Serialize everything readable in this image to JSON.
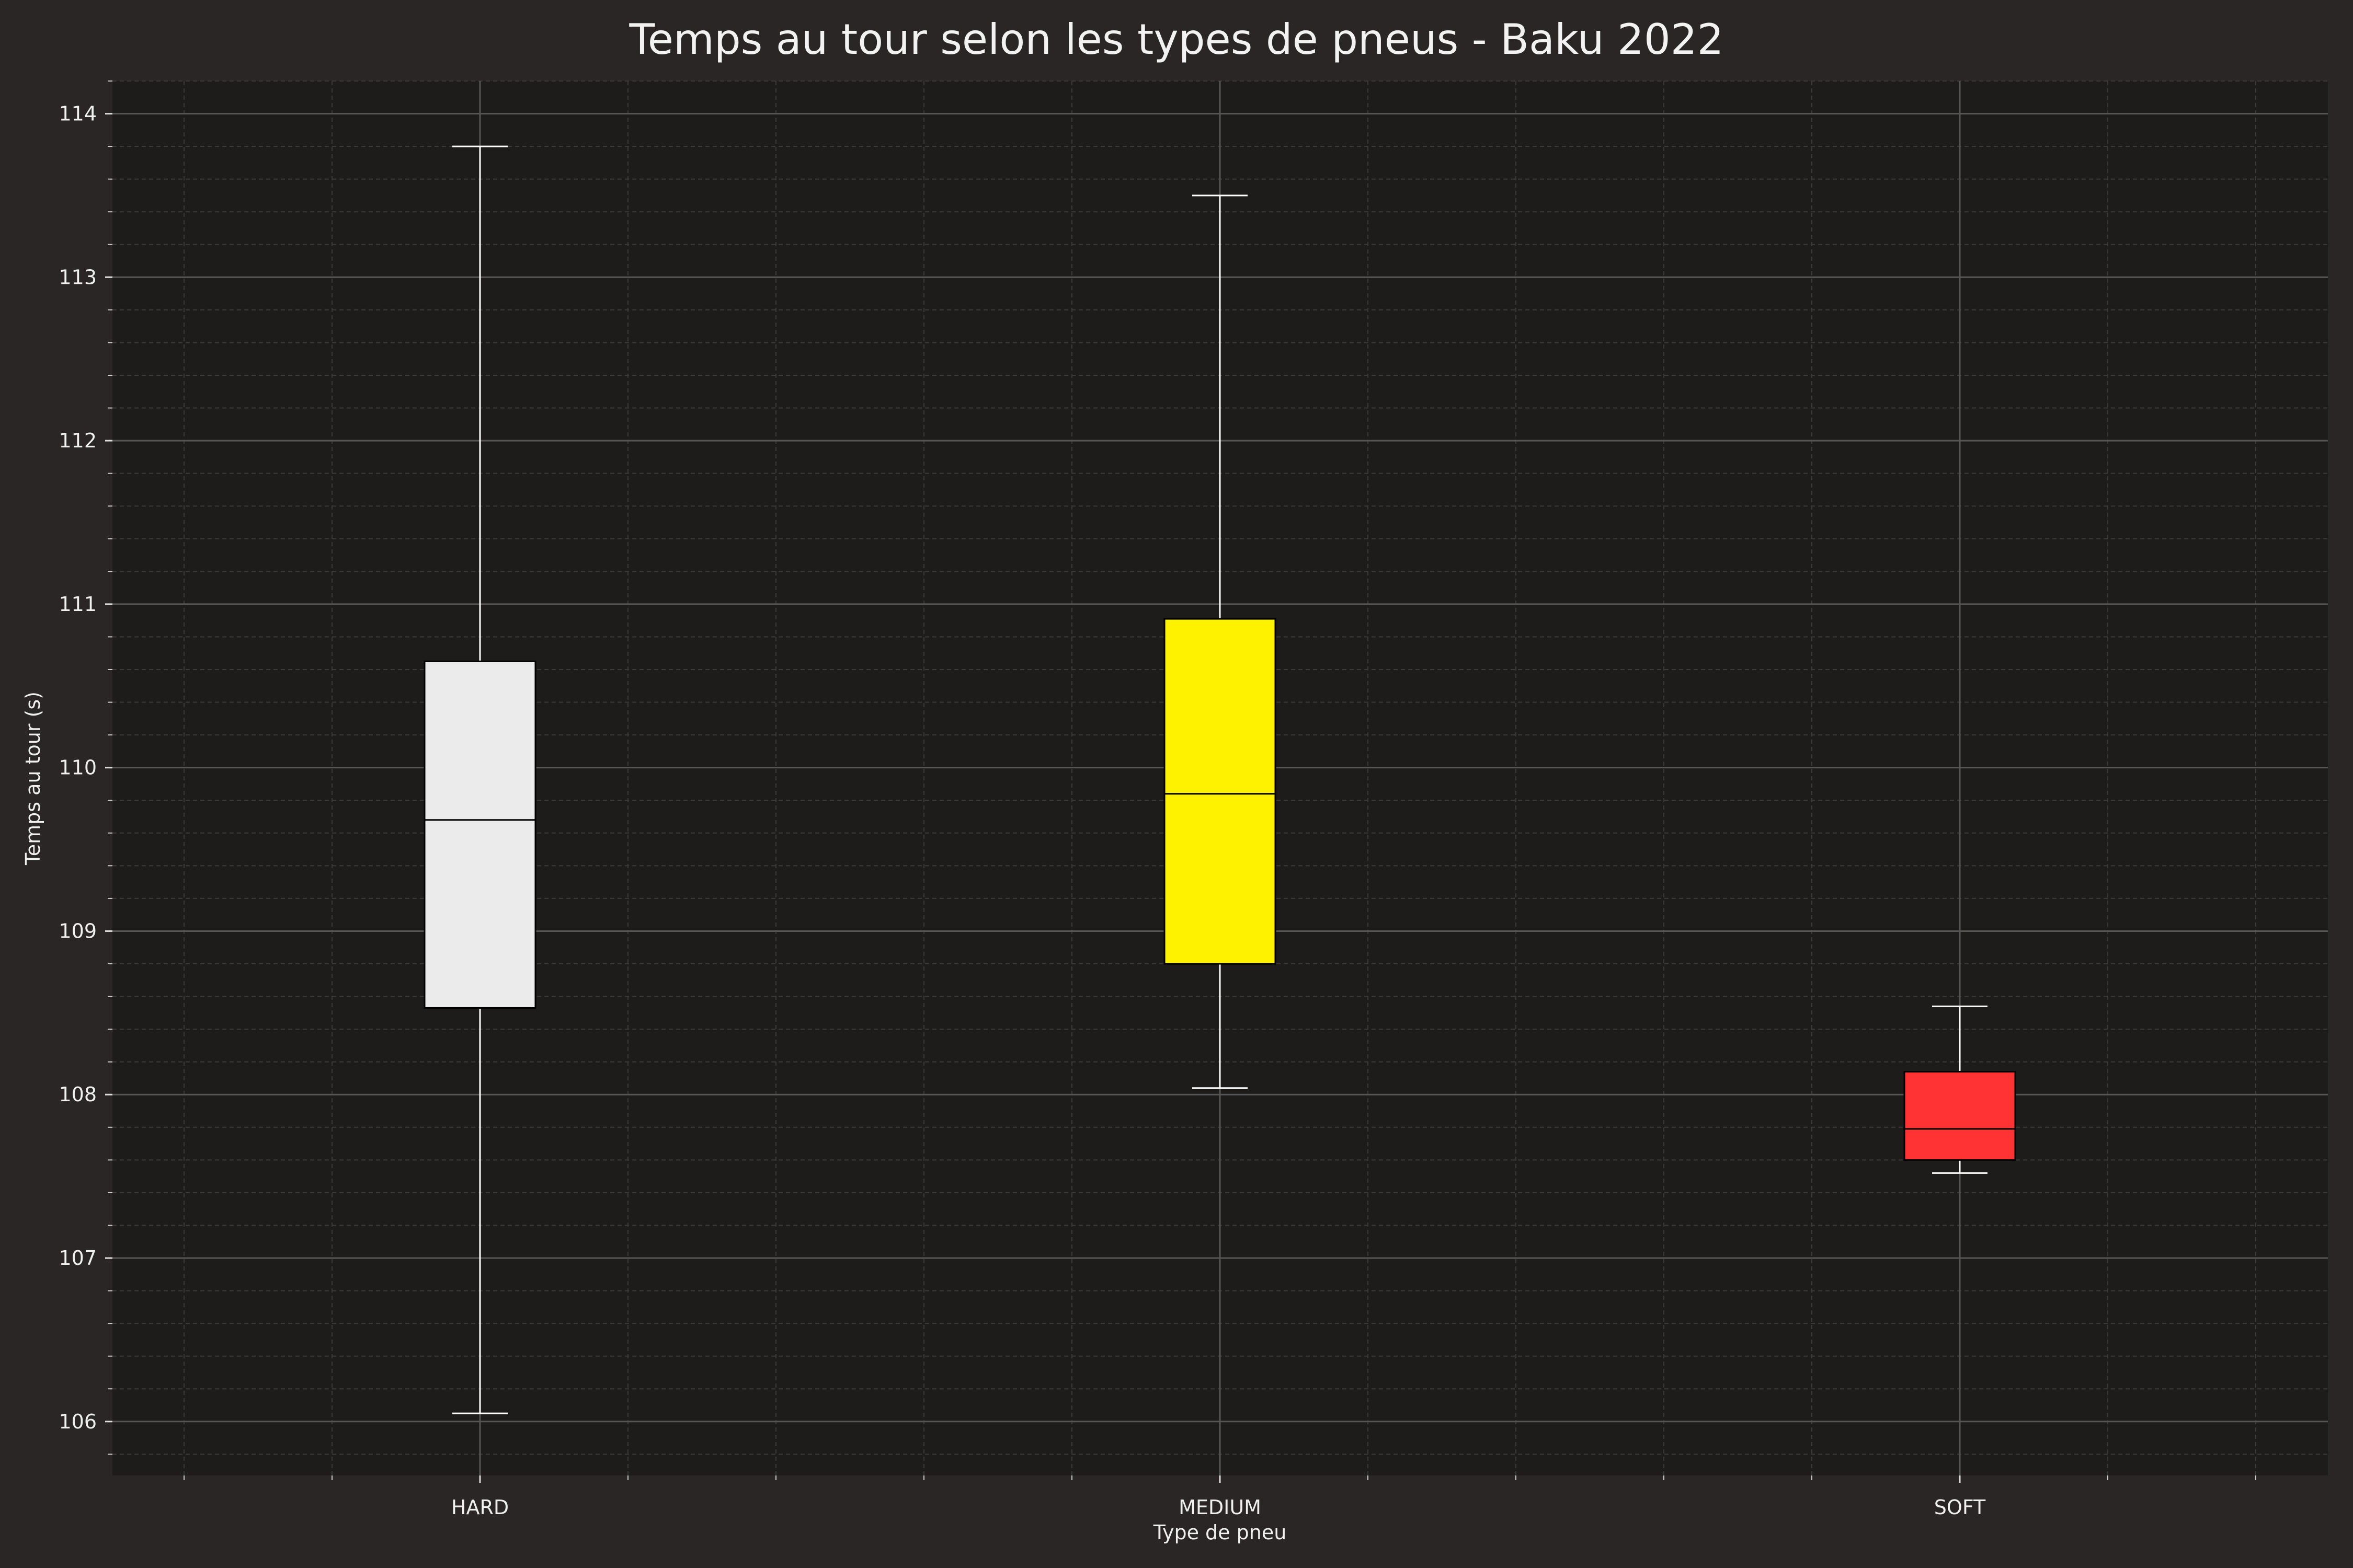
{
  "chart_data": {
    "type": "box",
    "title": "Temps au tour selon les types de pneus - Baku 2022",
    "xlabel": "Type de pneu",
    "ylabel": "Temps au tour (s)",
    "ylim": [
      105.67,
      114.2
    ],
    "y_ticks": [
      106,
      107,
      108,
      109,
      110,
      111,
      112,
      113,
      114
    ],
    "grid": true,
    "categories": [
      "HARD",
      "MEDIUM",
      "SOFT"
    ],
    "series": [
      {
        "category": "HARD",
        "whisker_low": 106.05,
        "q1": 108.53,
        "median": 109.68,
        "q3": 110.65,
        "whisker_high": 113.8,
        "color": "#ebebeb"
      },
      {
        "category": "MEDIUM",
        "whisker_low": 108.04,
        "q1": 108.8,
        "median": 109.84,
        "q3": 110.91,
        "whisker_high": 113.5,
        "color": "#fff200"
      },
      {
        "category": "SOFT",
        "whisker_low": 107.52,
        "q1": 107.6,
        "median": 107.79,
        "q3": 108.14,
        "whisker_high": 108.54,
        "color": "#ff3333"
      }
    ]
  },
  "colors": {
    "figure_background": "#292625",
    "plot_background": "#1e1c1b",
    "major_grid": "#555555",
    "minor_grid": "#3c3a39",
    "text": "#f0f0f0"
  }
}
